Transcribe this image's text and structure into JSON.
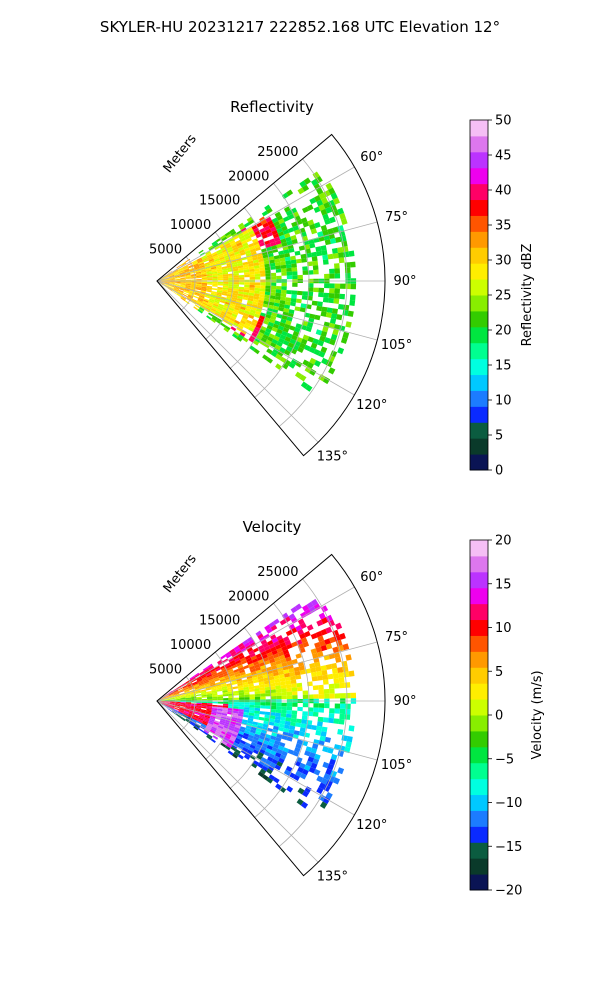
{
  "suptitle": "SKYLER-HU  20231217  222852.168 UTC Elevation 12°",
  "chart_data": [
    {
      "type": "heatmap",
      "projection": "polar-sector",
      "title": "Reflectivity",
      "radial_label": "Meters",
      "r_ticks": [
        "5000",
        "10000",
        "15000",
        "20000",
        "25000"
      ],
      "r_tick_values": [
        5000,
        10000,
        15000,
        20000,
        25000
      ],
      "r_max": 30000,
      "theta_range_deg": [
        50,
        140
      ],
      "theta_ticks": [
        "60°",
        "75°",
        "90°",
        "105°",
        "120°",
        "135°"
      ],
      "theta_tick_values": [
        60,
        75,
        90,
        105,
        120,
        135
      ],
      "grid": true,
      "colorbar": {
        "label": "Reflectivity dBZ",
        "range": [
          0,
          50
        ],
        "ticks": [
          "0",
          "5",
          "10",
          "15",
          "20",
          "25",
          "30",
          "35",
          "40",
          "45",
          "50"
        ],
        "tick_values": [
          0,
          5,
          10,
          15,
          20,
          25,
          30,
          35,
          40,
          45,
          50
        ],
        "colors": [
          "#0a1454",
          "#0a3a2a",
          "#0b5c40",
          "#0a2aff",
          "#1c7cff",
          "#00c8ff",
          "#00ffe0",
          "#00ff90",
          "#00e640",
          "#33cc00",
          "#88ee00",
          "#ccff00",
          "#ffee00",
          "#ffcc00",
          "#ff9900",
          "#ff5500",
          "#ff0000",
          "#ff0066",
          "#ee00ee",
          "#bb33ff",
          "#dd77ee",
          "#f5bff5"
        ]
      },
      "data_range_m": 25000,
      "description_of_field": "reflectivity sectors within azimuth 55-125 deg; high values (35-40 dBZ) near 65 deg at 15000-18000 m and near 115 deg at 12000-15000 m; moderate 25-30 dBZ near origin"
    },
    {
      "type": "heatmap",
      "projection": "polar-sector",
      "title": "Velocity",
      "radial_label": "Meters",
      "r_ticks": [
        "5000",
        "10000",
        "15000",
        "20000",
        "25000"
      ],
      "r_tick_values": [
        5000,
        10000,
        15000,
        20000,
        25000
      ],
      "r_max": 30000,
      "theta_range_deg": [
        50,
        140
      ],
      "theta_ticks": [
        "60°",
        "75°",
        "90°",
        "105°",
        "120°",
        "135°"
      ],
      "theta_tick_values": [
        60,
        75,
        90,
        105,
        120,
        135
      ],
      "grid": true,
      "colorbar": {
        "label": "Velocity (m/s)",
        "range": [
          -20,
          20
        ],
        "ticks": [
          "−20",
          "−15",
          "−10",
          "−5",
          "0",
          "5",
          "10",
          "15",
          "20"
        ],
        "tick_values": [
          -20,
          -15,
          -10,
          -5,
          0,
          5,
          10,
          15,
          20
        ],
        "colors": [
          "#0a1454",
          "#0a3a2a",
          "#0b5c40",
          "#0a2aff",
          "#1c7cff",
          "#00c8ff",
          "#00ffe0",
          "#00ff90",
          "#00e640",
          "#33cc00",
          "#88ee00",
          "#ccff00",
          "#ffee00",
          "#ffcc00",
          "#ff9900",
          "#ff5500",
          "#ff0000",
          "#ff0066",
          "#ee00ee",
          "#bb33ff",
          "#dd77ee",
          "#f5bff5"
        ]
      }
    }
  ]
}
